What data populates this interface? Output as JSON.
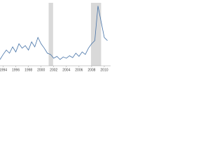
{
  "chart_data": {
    "type": "line",
    "x": [
      1993.5,
      1994,
      1994.5,
      1995,
      1995.5,
      1996,
      1996.5,
      1997,
      1997.5,
      1998,
      1998.5,
      1999,
      1999.5,
      2000,
      2000.5,
      2001,
      2001.5,
      2002,
      2002.5,
      2003,
      2003.5,
      2004,
      2004.5,
      2005,
      2005.5,
      2006,
      2006.5,
      2007,
      2007.5,
      2008,
      2008.5,
      2009,
      2009.5,
      2010,
      2010.5
    ],
    "series": [
      {
        "color": "#4572a7",
        "values": [
          10,
          18,
          25,
          20,
          30,
          22,
          35,
          28,
          32,
          25,
          38,
          30,
          45,
          35,
          28,
          20,
          18,
          12,
          15,
          10,
          14,
          12,
          16,
          13,
          20,
          15,
          22,
          18,
          28,
          35,
          40,
          95,
          70,
          45,
          40
        ]
      }
    ],
    "shading": [
      [
        2001.2,
        2001.9
      ],
      [
        2007.9,
        2009.5
      ]
    ],
    "shading_color": "#d9d9d9",
    "xlim": [
      1993.5,
      2011
    ],
    "xticks": [
      1994,
      1996,
      1998,
      2000,
      2002,
      2004,
      2006,
      2008,
      2010
    ],
    "ylim": [
      0,
      100
    ]
  }
}
